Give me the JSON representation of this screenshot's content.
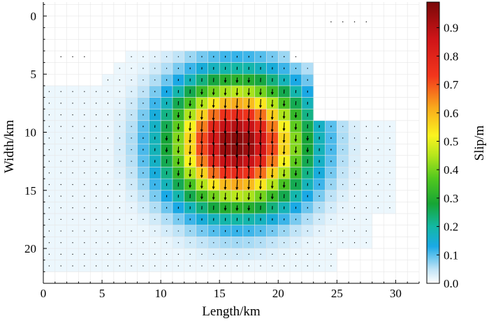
{
  "chart_data": {
    "type": "heatmap",
    "title": "",
    "xlabel": "Length/km",
    "ylabel": "Width/km",
    "xlim": [
      0,
      32
    ],
    "ylim": [
      23,
      -1.2
    ],
    "x_ticks": [
      0,
      5,
      10,
      15,
      20,
      25,
      30
    ],
    "y_ticks": [
      0,
      5,
      10,
      15,
      20
    ],
    "grid": true,
    "cell_size_km": 1,
    "slip_field": {
      "peak_slip": 0.98,
      "center_x": 16.5,
      "center_y": 11.0,
      "radius_x": 6.8,
      "radius_y": 6.5,
      "rake_deg": 255
    },
    "colorbar": {
      "label": "Slip/m",
      "min": 0.0,
      "max": 0.99,
      "ticks": [
        "0.0",
        "0.1",
        "0.2",
        "0.3",
        "0.4",
        "0.5",
        "0.6",
        "0.7",
        "0.8",
        "0.9"
      ],
      "stops": [
        {
          "value": 0.0,
          "color": "#ffffff"
        },
        {
          "value": 0.05,
          "color": "#bfe3f7"
        },
        {
          "value": 0.13,
          "color": "#1aa9e6"
        },
        {
          "value": 0.2,
          "color": "#13b8a4"
        },
        {
          "value": 0.28,
          "color": "#16a535"
        },
        {
          "value": 0.37,
          "color": "#52c81e"
        },
        {
          "value": 0.45,
          "color": "#b5e61c"
        },
        {
          "value": 0.52,
          "color": "#fbf41f"
        },
        {
          "value": 0.62,
          "color": "#f9a81c"
        },
        {
          "value": 0.73,
          "color": "#f3361c"
        },
        {
          "value": 0.86,
          "color": "#cf1418"
        },
        {
          "value": 0.99,
          "color": "#7a0808"
        }
      ]
    }
  }
}
